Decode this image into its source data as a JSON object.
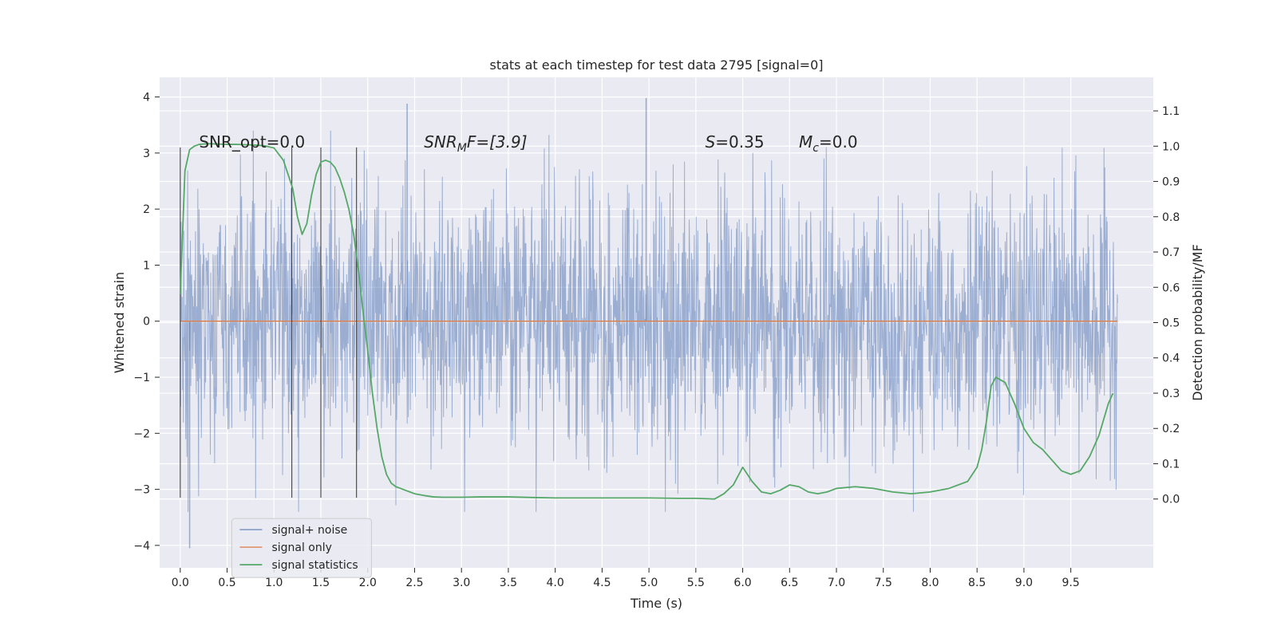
{
  "chart_data": {
    "type": "line",
    "title": "stats at each timestep for test data 2795 [signal=0]",
    "xlabel": "Time (s)",
    "ylabel": "Whitened strain",
    "y2label": "Detection probability/MF",
    "xlim": [
      -0.22,
      10.38
    ],
    "ylim": [
      -4.4,
      4.35
    ],
    "y2lim": [
      -0.195,
      1.195
    ],
    "x_ticks": [
      "0.0",
      "0.5",
      "1.0",
      "1.5",
      "2.0",
      "2.5",
      "3.0",
      "3.5",
      "4.0",
      "4.5",
      "5.0",
      "5.5",
      "6.0",
      "6.5",
      "7.0",
      "7.5",
      "8.0",
      "8.5",
      "9.0",
      "9.5"
    ],
    "y_ticks": [
      "4",
      "3",
      "2",
      "1",
      "0",
      "−1",
      "−2",
      "−3",
      "−4"
    ],
    "y2_ticks": [
      "1.1",
      "1.0",
      "0.9",
      "0.8",
      "0.7",
      "0.6",
      "0.5",
      "0.4",
      "0.3",
      "0.2",
      "0.1",
      "0.0"
    ],
    "grid": true,
    "legend_position": "lower-left",
    "annotations": [
      {
        "plain": "SNR_opt=0.0"
      },
      {
        "base": "SNR",
        "sub": "M",
        "rest": "F=[3.9]"
      },
      {
        "italic": "S",
        "rest": "=0.35"
      },
      {
        "italic": "M",
        "sub": "c",
        "rest": "=0.0"
      }
    ],
    "vertical_markers_x": [
      0.0,
      1.19,
      1.5,
      1.88
    ],
    "vertical_markers_yrange": [
      -3.15,
      3.1
    ],
    "colors": {
      "noise": "#4c72b0",
      "signal": "#dd8452",
      "statistics": "#55a868",
      "marker": "#333333",
      "panel": "#eaeaf2",
      "grid": "#ffffff"
    },
    "series": [
      {
        "name": "signal+ noise",
        "axis": "left",
        "style": "dense noise trace, whitened strain approx. within [-4.05, 3.98]",
        "x_range": [
          0.0,
          10.0
        ],
        "typical_amplitude": 2.0,
        "extremes": [
          [
            0.1,
            -4.05
          ],
          [
            4.97,
            3.98
          ],
          [
            2.42,
            3.88
          ]
        ]
      },
      {
        "name": "signal only",
        "axis": "left",
        "x": [
          0.0,
          10.0
        ],
        "y": [
          0.0,
          0.0
        ]
      },
      {
        "name": "signal statistics",
        "axis": "right",
        "x": [
          0.0,
          0.05,
          0.1,
          0.15,
          0.2,
          0.3,
          0.4,
          0.5,
          0.6,
          0.7,
          0.8,
          0.9,
          1.0,
          1.1,
          1.2,
          1.25,
          1.3,
          1.35,
          1.4,
          1.45,
          1.5,
          1.55,
          1.6,
          1.65,
          1.7,
          1.75,
          1.8,
          1.85,
          1.9,
          1.95,
          2.0,
          2.05,
          2.1,
          2.15,
          2.2,
          2.25,
          2.3,
          2.35,
          2.4,
          2.45,
          2.5,
          2.6,
          2.7,
          2.8,
          2.9,
          3.0,
          3.2,
          3.5,
          3.8,
          4.0,
          4.5,
          5.0,
          5.3,
          5.5,
          5.7,
          5.8,
          5.9,
          5.95,
          6.0,
          6.1,
          6.2,
          6.3,
          6.4,
          6.5,
          6.6,
          6.7,
          6.8,
          6.9,
          7.0,
          7.2,
          7.4,
          7.6,
          7.8,
          8.0,
          8.2,
          8.4,
          8.5,
          8.55,
          8.6,
          8.65,
          8.7,
          8.8,
          8.9,
          9.0,
          9.1,
          9.2,
          9.3,
          9.4,
          9.5,
          9.6,
          9.7,
          9.8,
          9.9,
          9.95
        ],
        "y": [
          0.58,
          0.93,
          0.99,
          1.0,
          1.005,
          1.007,
          1.006,
          1.005,
          1.005,
          1.004,
          1.003,
          1.001,
          0.995,
          0.96,
          0.88,
          0.8,
          0.75,
          0.78,
          0.86,
          0.92,
          0.955,
          0.96,
          0.955,
          0.94,
          0.91,
          0.87,
          0.82,
          0.75,
          0.65,
          0.53,
          0.42,
          0.3,
          0.2,
          0.12,
          0.07,
          0.045,
          0.035,
          0.03,
          0.025,
          0.02,
          0.015,
          0.01,
          0.006,
          0.005,
          0.005,
          0.005,
          0.006,
          0.006,
          0.004,
          0.003,
          0.003,
          0.003,
          0.002,
          0.002,
          0.0,
          0.015,
          0.04,
          0.065,
          0.09,
          0.05,
          0.02,
          0.015,
          0.025,
          0.04,
          0.035,
          0.02,
          0.015,
          0.02,
          0.03,
          0.035,
          0.03,
          0.02,
          0.015,
          0.02,
          0.03,
          0.05,
          0.09,
          0.14,
          0.22,
          0.32,
          0.345,
          0.33,
          0.27,
          0.2,
          0.16,
          0.14,
          0.11,
          0.08,
          0.07,
          0.08,
          0.12,
          0.18,
          0.27,
          0.3
        ]
      }
    ]
  }
}
